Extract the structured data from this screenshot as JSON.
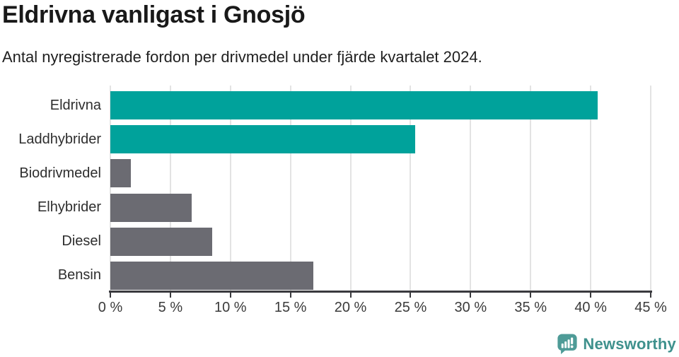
{
  "header": {
    "title": "Eldrivna vanligast i Gnosjö",
    "subtitle": "Antal nyregistrerade fordon per drivmedel under fjärde kvartalet 2024."
  },
  "chart_data": {
    "type": "bar",
    "orientation": "horizontal",
    "title": "Eldrivna vanligast i Gnosjö",
    "subtitle": "Antal nyregistrerade fordon per drivmedel under fjärde kvartalet 2024.",
    "categories": [
      "Eldrivna",
      "Laddhybrider",
      "Biodrivmedel",
      "Elhybrider",
      "Diesel",
      "Bensin"
    ],
    "values": [
      40.6,
      25.4,
      1.7,
      6.8,
      8.5,
      16.9
    ],
    "unit": "%",
    "bar_colors": [
      "#00a29b",
      "#00a29b",
      "#6b6b72",
      "#6b6b72",
      "#6b6b72",
      "#6b6b72"
    ],
    "highlight_color": "#00a29b",
    "default_color": "#6b6b72",
    "xlabel": "",
    "ylabel": "",
    "xlim": [
      0,
      45
    ],
    "xtick_step": 5,
    "xtick_labels": [
      "0 %",
      "5 %",
      "10 %",
      "15 %",
      "20 %",
      "25 %",
      "30 %",
      "35 %",
      "40 %",
      "45 %"
    ],
    "grid": true,
    "legend": false
  },
  "footer": {
    "brand": "Newsworthy",
    "logo_icon": "bar-chart-speech-bubble-icon",
    "brand_text_color": "#3f918d",
    "icon_color": "#4e9b97"
  },
  "colors": {
    "background": "#ffffff",
    "axis": "#3a3a3e",
    "gridline": "#e3e3e3",
    "title_text": "#191919",
    "label_text": "#2e2e2e"
  }
}
